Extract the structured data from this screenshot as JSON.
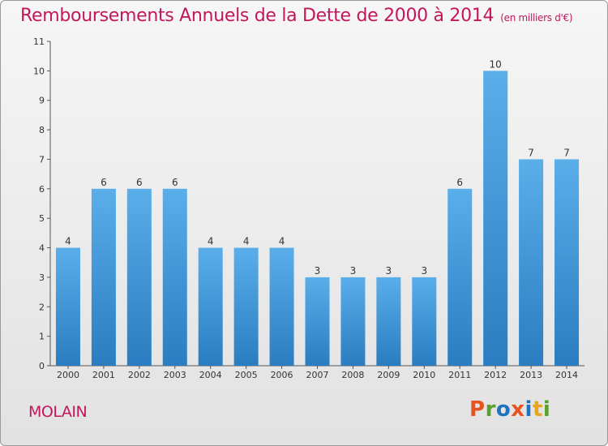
{
  "chart_data": {
    "type": "bar",
    "title": "Remboursements Annuels de la Dette de 2000 à 2014",
    "unit_label": "(en milliers d'€)",
    "categories": [
      "2000",
      "2001",
      "2002",
      "2003",
      "2004",
      "2005",
      "2006",
      "2007",
      "2008",
      "2009",
      "2010",
      "2011",
      "2012",
      "2013",
      "2014"
    ],
    "values": [
      4,
      6,
      6,
      6,
      4,
      4,
      4,
      3,
      3,
      3,
      3,
      6,
      10,
      7,
      7
    ],
    "ylim": [
      0,
      11
    ],
    "yticks": [
      0,
      1,
      2,
      3,
      4,
      5,
      6,
      7,
      8,
      9,
      10,
      11
    ],
    "xlabel": "",
    "ylabel": "",
    "grid": false,
    "bar_color": "#3f95d6",
    "title_color": "#c2185b"
  },
  "footer": {
    "town": "MOLAIN",
    "brand": "Proxiti",
    "brand_letters": [
      {
        "ch": "P",
        "color": "#e8531f"
      },
      {
        "ch": "r",
        "color": "#5aa02c"
      },
      {
        "ch": "o",
        "color": "#1e73be"
      },
      {
        "ch": "x",
        "color": "#e8531f"
      },
      {
        "ch": "i",
        "color": "#1e73be"
      },
      {
        "ch": "t",
        "color": "#e8a31f"
      },
      {
        "ch": "i",
        "color": "#5aa02c"
      }
    ]
  }
}
